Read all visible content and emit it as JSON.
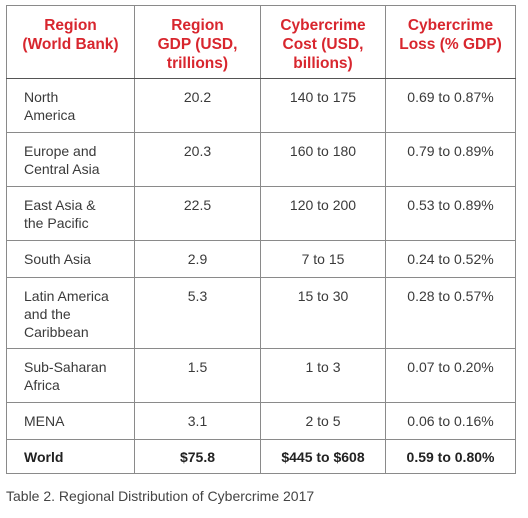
{
  "table": {
    "headers": [
      "Region\n(World Bank)",
      "Region\nGDP (USD,\ntrillions)",
      "Cybercrime\nCost (USD,\nbillions)",
      "Cybercrime\nLoss (% GDP)"
    ],
    "rows": [
      {
        "region": "North\nAmerica",
        "gdp": "20.2",
        "cost": "140 to 175",
        "loss": "0.69 to 0.87%"
      },
      {
        "region": "Europe and\nCentral Asia",
        "gdp": "20.3",
        "cost": "160 to 180",
        "loss": "0.79 to 0.89%"
      },
      {
        "region": "East Asia &\nthe Pacific",
        "gdp": "22.5",
        "cost": "120 to 200",
        "loss": "0.53 to 0.89%"
      },
      {
        "region": "South Asia",
        "gdp": "2.9",
        "cost": "7 to 15",
        "loss": "0.24 to 0.52%"
      },
      {
        "region": "Latin America\nand the\nCaribbean",
        "gdp": "5.3",
        "cost": "15 to 30",
        "loss": "0.28 to 0.57%"
      },
      {
        "region": "Sub-Saharan\nAfrica",
        "gdp": "1.5",
        "cost": "1 to 3",
        "loss": "0.07 to 0.20%"
      },
      {
        "region": "MENA",
        "gdp": "3.1",
        "cost": "2 to 5",
        "loss": "0.06 to 0.16%"
      }
    ],
    "total": {
      "region": "World",
      "gdp": "$75.8",
      "cost": "$445 to $608",
      "loss": "0.59 to 0.80%"
    }
  },
  "caption": "Table 2. Regional Distribution of Cybercrime 2017",
  "colors": {
    "header_text": "#d8262e",
    "body_text": "#3a3a3a",
    "border": "#8a8a8a"
  }
}
